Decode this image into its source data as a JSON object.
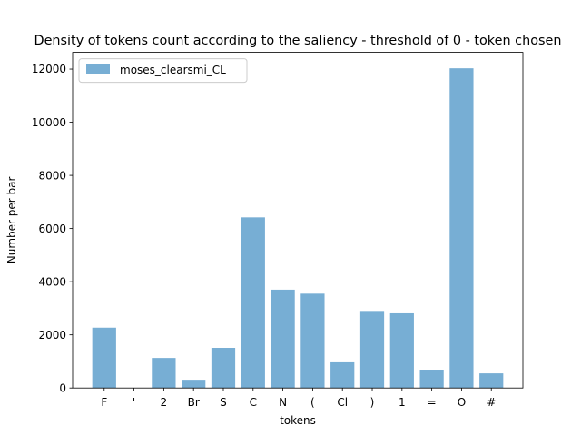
{
  "chart_data": {
    "type": "bar",
    "title": "Density of tokens count according to the saliency - threshold of 0 - token chosen",
    "xlabel": "tokens",
    "ylabel": "Number per bar",
    "categories": [
      "F",
      "'",
      "2",
      "Br",
      "S",
      "C",
      "N",
      "(",
      "Cl",
      ")",
      "1",
      "=",
      "O",
      "#"
    ],
    "series": [
      {
        "name": "moses_clearsmi_CL",
        "values": [
          2270,
          0,
          1130,
          310,
          1510,
          6420,
          3700,
          3550,
          1000,
          2900,
          2810,
          690,
          12030,
          550
        ],
        "color": "#77aed4"
      }
    ],
    "ylim": [
      0,
      12630
    ],
    "yticks": [
      0,
      2000,
      4000,
      6000,
      8000,
      10000,
      12000
    ],
    "grid": false,
    "legend": "top-left"
  }
}
